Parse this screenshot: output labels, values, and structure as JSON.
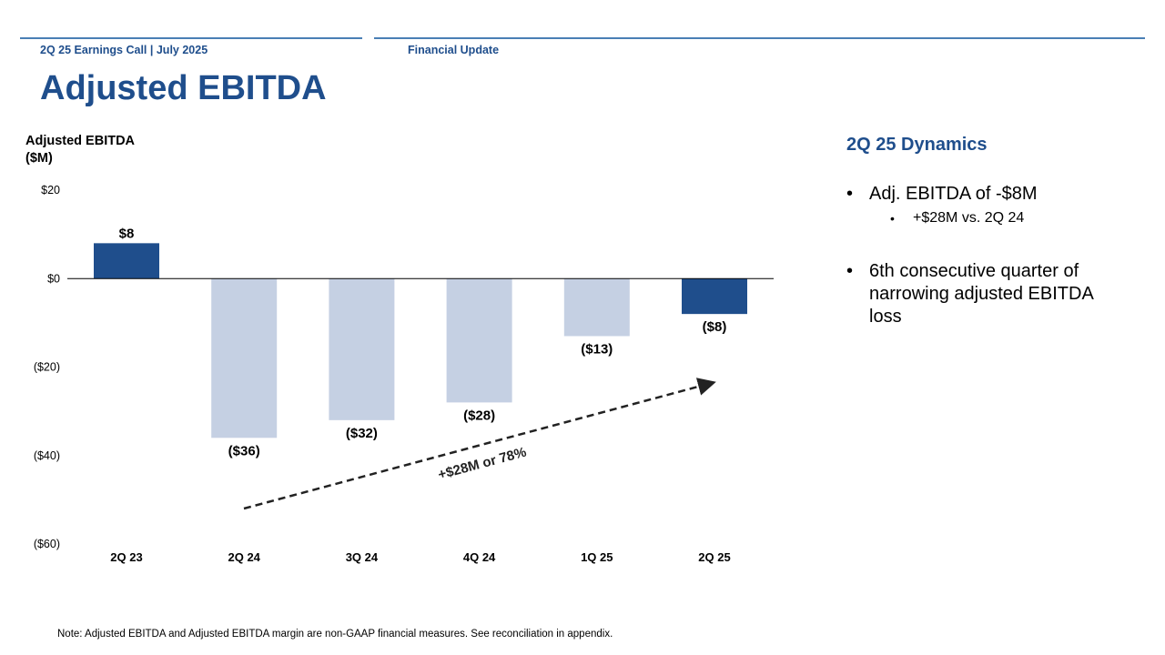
{
  "header": {
    "left": "2Q 25 Earnings Call | July 2025",
    "right": "Financial Update"
  },
  "title": "Adjusted EBITDA",
  "colors": {
    "accent": "#1f4e8c",
    "bar_highlight": "#1f4e8c",
    "bar_muted": "#c5d0e3",
    "rule": "#4a7fb5"
  },
  "chart_data": {
    "type": "bar",
    "title": "",
    "ylabel_line1": "Adjusted EBITDA",
    "ylabel_line2": "($M)",
    "xlabel": "",
    "ylim": [
      -60,
      20
    ],
    "yticks": [
      20,
      0,
      -20,
      -40,
      -60
    ],
    "ytick_labels": [
      "$20",
      "$0",
      "($20)",
      "($40)",
      "($60)"
    ],
    "categories": [
      "2Q 23",
      "2Q 24",
      "3Q 24",
      "4Q 24",
      "1Q 25",
      "2Q 25"
    ],
    "values": [
      8,
      -36,
      -32,
      -28,
      -13,
      -8
    ],
    "value_labels": [
      "$8",
      "($36)",
      "($32)",
      "($28)",
      "($13)",
      "($8)"
    ],
    "highlight": [
      true,
      false,
      false,
      false,
      false,
      true
    ],
    "annotation": {
      "text": "+$28M or 78%",
      "from_category": "2Q 24",
      "to_category": "2Q 25"
    }
  },
  "dynamics": {
    "title": "2Q 25 Dynamics",
    "bullet1": "Adj. EBITDA of -$8M",
    "bullet1_sub": "+$28M vs. 2Q 24",
    "bullet2": "6th consecutive quarter of narrowing adjusted EBITDA loss"
  },
  "footnote": "Note: Adjusted EBITDA and Adjusted EBITDA margin are non-GAAP financial measures. See reconciliation in appendix."
}
